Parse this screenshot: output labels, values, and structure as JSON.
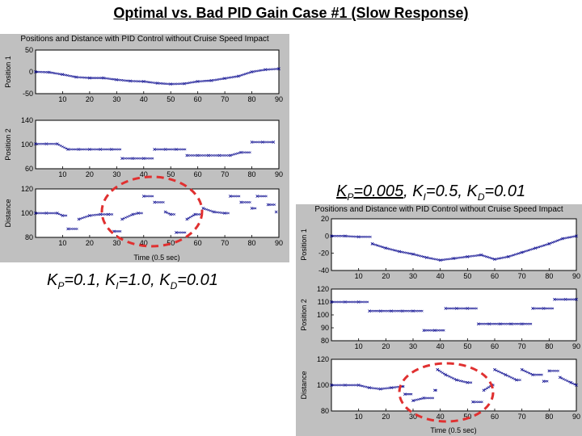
{
  "page": {
    "title": "Optimal vs. Bad PID Gain Case #1 (Slow Response)"
  },
  "gains": {
    "right": {
      "kp_sym": "K",
      "kp_sub": "P",
      "kp_val": "=0.005",
      "ki_sym": ", K",
      "ki_sub": "I",
      "ki_val": "=0.5",
      "kd_sym": ", K",
      "kd_sub": "D",
      "kd_val": "=0.01"
    },
    "left": {
      "kp_sym": "K",
      "kp_sub": "P",
      "kp_val": "=0.1",
      "ki_sym": ", K",
      "ki_sub": "I",
      "ki_val": "=1.0",
      "kd_sym": ", K",
      "kd_sub": "D",
      "kd_val": "=0.01"
    }
  },
  "colors": {
    "panel_bg": "#c0c0c0",
    "plot_bg": "#ffffff",
    "series": "#00008b",
    "highlight": "#e03030"
  },
  "chart_data": [
    {
      "type": "scatter",
      "panel": "left",
      "title": "Positions and Distance with PID Control without Cruise Speed Impact",
      "xlabel": "Time (0.5 sec)",
      "subplots": [
        {
          "ylabel": "Position 1",
          "ylim": [
            -50,
            50
          ],
          "yticks": [
            -50,
            0,
            50
          ],
          "ytick_labels": [
            "-50",
            "0",
            "50"
          ],
          "xlim": [
            0,
            90
          ],
          "xticks": [
            10,
            20,
            30,
            40,
            50,
            60,
            70,
            80,
            90
          ],
          "series": {
            "x": [
              0,
              5,
              10,
              15,
              20,
              25,
              30,
              35,
              40,
              45,
              50,
              55,
              60,
              65,
              70,
              75,
              80,
              85,
              90
            ],
            "y": [
              0,
              -1,
              -6,
              -12,
              -14,
              -14,
              -18,
              -21,
              -22,
              -26,
              -28,
              -27,
              -22,
              -20,
              -15,
              -10,
              0,
              5,
              7
            ]
          }
        },
        {
          "ylabel": "Position 2",
          "ylim": [
            60,
            140
          ],
          "yticks": [
            60,
            100,
            140
          ],
          "ytick_labels": [
            "60",
            "100",
            "140"
          ],
          "xlim": [
            0,
            90
          ],
          "xticks": [
            10,
            20,
            30,
            40,
            50,
            60,
            70,
            80,
            90
          ],
          "series": {
            "x": [
              0,
              4,
              8,
              12,
              16,
              20,
              24,
              28,
              32,
              36,
              40,
              44,
              48,
              52,
              56,
              60,
              64,
              68,
              72,
              76,
              80,
              84,
              88
            ],
            "y": [
              101,
              101,
              101,
              92,
              92,
              92,
              92,
              92,
              77,
              77,
              77,
              92,
              92,
              92,
              82,
              82,
              82,
              82,
              82,
              87,
              104,
              104,
              104
            ]
          }
        },
        {
          "ylabel": "Distance",
          "ylim": [
            80,
            120
          ],
          "yticks": [
            80,
            100,
            120
          ],
          "ytick_labels": [
            "80",
            "100",
            "120"
          ],
          "xlim": [
            0,
            90
          ],
          "xticks": [
            10,
            20,
            30,
            40,
            50,
            60,
            70,
            80,
            90
          ],
          "series": {
            "x": [
              0,
              4,
              8,
              10,
              12,
              16,
              20,
              24,
              27,
              29,
              32,
              36,
              38,
              40,
              44,
              48,
              50,
              52,
              56,
              59,
              62,
              66,
              70,
              72,
              76,
              80,
              82,
              86,
              89
            ],
            "y": [
              100,
              100,
              100,
              98,
              87,
              95,
              98,
              99,
              99,
              85,
              95,
              99,
              100,
              114,
              109,
              101,
              99,
              84,
              95,
              99,
              104,
              101,
              100,
              114,
              109,
              104,
              114,
              107,
              101
            ]
          }
        }
      ]
    },
    {
      "type": "scatter",
      "panel": "right",
      "title": "Positions and Distance with PID Control without Cruise Speed Impact",
      "xlabel": "Time (0.5 sec)",
      "subplots": [
        {
          "ylabel": "Position 1",
          "ylim": [
            -40,
            20
          ],
          "yticks": [
            -40,
            -20,
            0,
            20
          ],
          "ytick_labels": [
            "-40",
            "-20",
            "0",
            "20"
          ],
          "xlim": [
            0,
            90
          ],
          "xticks": [
            10,
            20,
            30,
            40,
            50,
            60,
            70,
            80,
            90
          ],
          "series": {
            "x": [
              0,
              5,
              10,
              15,
              20,
              25,
              30,
              35,
              40,
              45,
              50,
              55,
              60,
              65,
              70,
              75,
              80,
              85,
              90
            ],
            "y": [
              0,
              0,
              -1,
              -9,
              -14,
              -18,
              -21,
              -25,
              -28,
              -26,
              -24,
              -22,
              -27,
              -24,
              -19,
              -14,
              -9,
              -3,
              0
            ]
          }
        },
        {
          "ylabel": "Position 2",
          "ylim": [
            80,
            120
          ],
          "yticks": [
            80,
            90,
            100,
            110,
            120
          ],
          "ytick_labels": [
            "80",
            "90",
            "100",
            "110",
            "120"
          ],
          "xlim": [
            0,
            90
          ],
          "xticks": [
            10,
            20,
            30,
            40,
            50,
            60,
            70,
            80,
            90
          ],
          "series": {
            "x": [
              0,
              5,
              10,
              14,
              18,
              22,
              26,
              30,
              34,
              38,
              42,
              46,
              50,
              54,
              58,
              62,
              66,
              70,
              74,
              78,
              82,
              86,
              90
            ],
            "y": [
              110,
              110,
              110,
              103,
              103,
              103,
              103,
              103,
              88,
              88,
              105,
              105,
              105,
              93,
              93,
              93,
              93,
              93,
              105,
              105,
              112,
              112,
              112
            ]
          }
        },
        {
          "ylabel": "Distance",
          "ylim": [
            80,
            120
          ],
          "yticks": [
            80,
            100,
            120
          ],
          "ytick_labels": [
            "80",
            "100",
            "120"
          ],
          "xlim": [
            0,
            90
          ],
          "xticks": [
            10,
            20,
            30,
            40,
            50,
            60,
            70,
            80,
            90
          ],
          "series": {
            "x": [
              0,
              5,
              10,
              14,
              18,
              22,
              26,
              27,
              30,
              34,
              38,
              39,
              42,
              46,
              50,
              52,
              56,
              59,
              60,
              64,
              68,
              70,
              74,
              78,
              80,
              84,
              88,
              90
            ],
            "y": [
              100,
              100,
              100,
              98,
              97,
              98,
              99,
              93,
              88,
              90,
              96,
              112,
              108,
              104,
              102,
              87,
              96,
              100,
              112,
              108,
              104,
              112,
              108,
              103,
              111,
              106,
              102,
              100
            ]
          }
        }
      ]
    }
  ]
}
